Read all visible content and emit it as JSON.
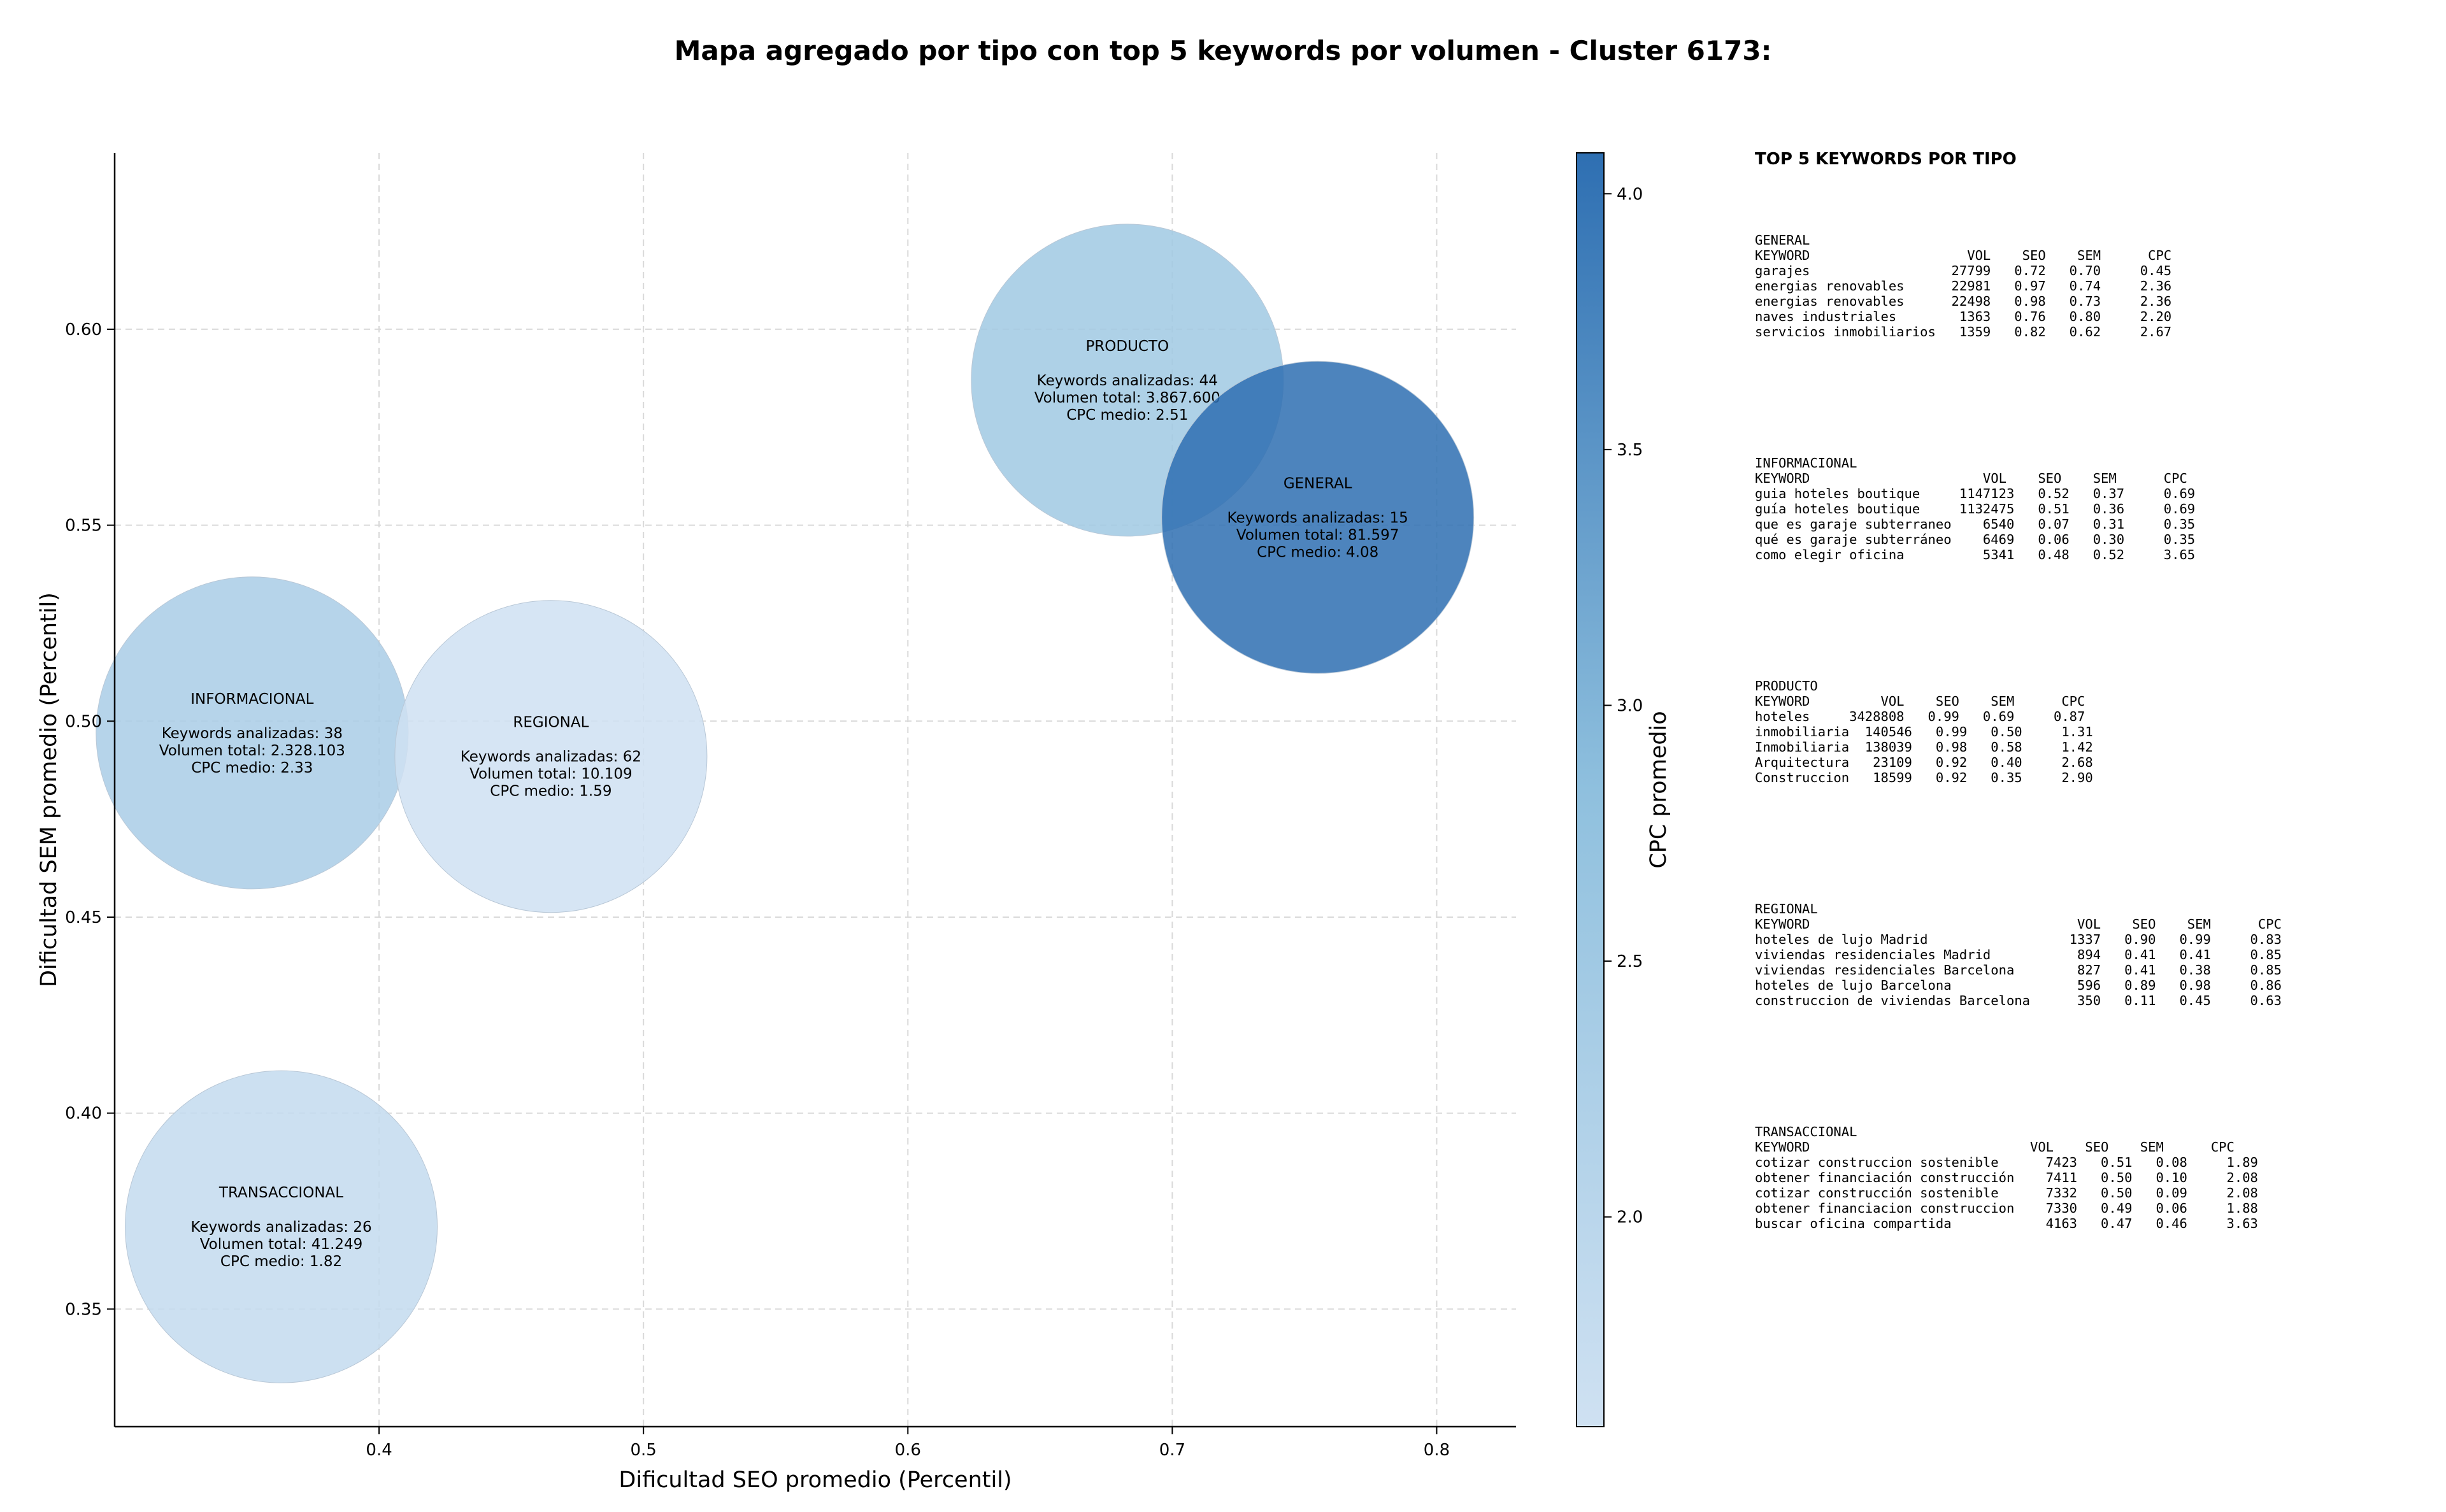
{
  "title": "Mapa agregado por tipo con top 5 keywords por volumen - Cluster 6173:",
  "colors": {
    "cmap_low": "#cfe1f2",
    "cmap_mid": "#8fc0de",
    "cmap_high": "#2e6fb2"
  },
  "chart_data": {
    "type": "scatter",
    "subtype": "bubble",
    "xlabel": "Dificultad SEO promedio (Percentil)",
    "ylabel": "Dificultad SEM promedio (Percentil)",
    "xlim": [
      0.3,
      0.83
    ],
    "ylim": [
      0.32,
      0.645
    ],
    "xticks": [
      0.4,
      0.5,
      0.6,
      0.7,
      0.8
    ],
    "xtick_labels": [
      "0.4",
      "0.5",
      "0.6",
      "0.7",
      "0.8"
    ],
    "yticks": [
      0.35,
      0.4,
      0.45,
      0.5,
      0.55,
      0.6
    ],
    "ytick_labels": [
      "0.35",
      "0.40",
      "0.45",
      "0.50",
      "0.55",
      "0.60"
    ],
    "grid": true,
    "colorbar": {
      "label": "CPC promedio",
      "range": [
        1.59,
        4.08
      ],
      "ticks": [
        2.0,
        2.5,
        3.0,
        3.5,
        4.0
      ],
      "tick_labels": [
        "2.0",
        "2.5",
        "3.0",
        "3.5",
        "4.0"
      ]
    },
    "points": [
      {
        "name": "PRODUCTO",
        "x": 0.683,
        "y": 0.587,
        "keywords": 44,
        "volume": "3.867.600",
        "cpc": 2.51,
        "text_lines": [
          "PRODUCTO",
          "",
          "Keywords analizadas: 44",
          "Volumen total: 3.867.600",
          "CPC medio: 2.51"
        ]
      },
      {
        "name": "GENERAL",
        "x": 0.755,
        "y": 0.552,
        "keywords": 15,
        "volume": "81.597",
        "cpc": 4.08,
        "text_lines": [
          "GENERAL",
          "",
          "Keywords analizadas: 15",
          "Volumen total: 81.597",
          "CPC medio: 4.08"
        ]
      },
      {
        "name": "INFORMACIONAL",
        "x": 0.352,
        "y": 0.497,
        "keywords": 38,
        "volume": "2.328.103",
        "cpc": 2.33,
        "text_lines": [
          "INFORMACIONAL",
          "",
          "Keywords analizadas: 38",
          "Volumen total: 2.328.103",
          "CPC medio: 2.33"
        ]
      },
      {
        "name": "REGIONAL",
        "x": 0.465,
        "y": 0.491,
        "keywords": 62,
        "volume": "10.109",
        "cpc": 1.59,
        "text_lines": [
          "REGIONAL",
          "",
          "Keywords analizadas: 62",
          "Volumen total: 10.109",
          "CPC medio: 1.59"
        ]
      },
      {
        "name": "TRANSACCIONAL",
        "x": 0.363,
        "y": 0.371,
        "keywords": 26,
        "volume": "41.249",
        "cpc": 1.82,
        "text_lines": [
          "TRANSACCIONAL",
          "",
          "Keywords analizadas: 26",
          "Volumen total: 41.249",
          "CPC medio: 1.82"
        ]
      }
    ]
  },
  "side_panel": {
    "title": "TOP 5 KEYWORDS POR TIPO",
    "blocks": [
      {
        "name": "GENERAL",
        "text": "GENERAL\nKEYWORD                    VOL    SEO    SEM      CPC\ngarajes                  27799   0.72   0.70     0.45\nenergias renovables      22981   0.97   0.74     2.36\nenergias renovables      22498   0.98   0.73     2.36\nnaves industriales        1363   0.76   0.80     2.20\nservicios inmobiliarios   1359   0.82   0.62     2.67"
      },
      {
        "name": "INFORMACIONAL",
        "text": "INFORMACIONAL\nKEYWORD                      VOL    SEO    SEM      CPC\nguia hoteles boutique     1147123   0.52   0.37     0.69\nguía hoteles boutique     1132475   0.51   0.36     0.69\nque es garaje subterraneo    6540   0.07   0.31     0.35\nqué es garaje subterráneo    6469   0.06   0.30     0.35\ncomo elegir oficina          5341   0.48   0.52     3.65"
      },
      {
        "name": "PRODUCTO",
        "text": "PRODUCTO\nKEYWORD         VOL    SEO    SEM      CPC\nhoteles     3428808   0.99   0.69     0.87\ninmobiliaria  140546   0.99   0.50     1.31\nInmobiliaria  138039   0.98   0.58     1.42\nArquitectura   23109   0.92   0.40     2.68\nConstruccion   18599   0.92   0.35     2.90"
      },
      {
        "name": "REGIONAL",
        "text": "REGIONAL\nKEYWORD                                  VOL    SEO    SEM      CPC\nhoteles de lujo Madrid                  1337   0.90   0.99     0.83\nviviendas residenciales Madrid           894   0.41   0.41     0.85\nviviendas residenciales Barcelona        827   0.41   0.38     0.85\nhoteles de lujo Barcelona                596   0.89   0.98     0.86\nconstruccion de viviendas Barcelona      350   0.11   0.45     0.63"
      },
      {
        "name": "TRANSACCIONAL",
        "text": "TRANSACCIONAL\nKEYWORD                            VOL    SEO    SEM      CPC\ncotizar construccion sostenible      7423   0.51   0.08     1.89\nobtener financiación construcción    7411   0.50   0.10     2.08\ncotizar construcción sostenible      7332   0.50   0.09     2.08\nobtener financiacion construccion    7330   0.49   0.06     1.88\nbuscar oficina compartida            4163   0.47   0.46     3.63"
      }
    ]
  }
}
